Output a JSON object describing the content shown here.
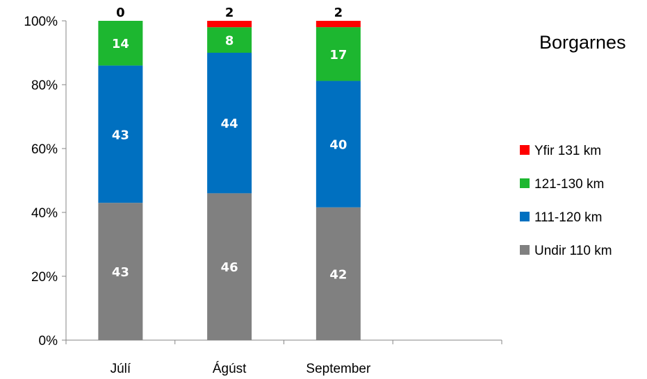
{
  "chart_data": {
    "type": "bar",
    "stacked": "percent",
    "title": "Borgarnes",
    "categories": [
      "Júlí",
      "Ágúst",
      "September"
    ],
    "series": [
      {
        "name": "Undir 110 km",
        "color": "#808080",
        "values": [
          43,
          46,
          42
        ]
      },
      {
        "name": "111-120 km",
        "color": "#0070C0",
        "values": [
          43,
          44,
          40
        ]
      },
      {
        "name": "121-130 km",
        "color": "#1DB730",
        "values": [
          14,
          8,
          17
        ]
      },
      {
        "name": "Yfir 131 km",
        "color": "#FF0000",
        "values": [
          0,
          2,
          2
        ]
      }
    ],
    "y_ticks": [
      "0%",
      "20%",
      "40%",
      "60%",
      "80%",
      "100%"
    ],
    "ylim": [
      0,
      100
    ],
    "legend_position": "right",
    "grid": false
  }
}
